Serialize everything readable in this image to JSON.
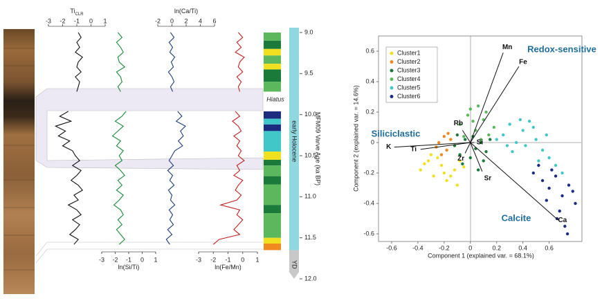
{
  "chart_data": [
    {
      "type": "line",
      "y_label": "MFM09 Varve Age (ka BP)",
      "ylim": [
        9,
        12
      ],
      "y_inverted": true,
      "yticks": [
        {
          "value": 9,
          "label": "9.0"
        },
        {
          "value": 9.5,
          "label": "9.5"
        },
        {
          "value": 10,
          "label": "10.0"
        },
        {
          "value": 10.5,
          "label": "10.5"
        },
        {
          "value": 11,
          "label": "11.0"
        },
        {
          "value": 11.5,
          "label": "11.5"
        },
        {
          "value": 12,
          "label": "12.0"
        }
      ],
      "annotation": "Hiatus",
      "age": [
        9.0,
        9.06,
        9.12,
        9.18,
        9.24,
        9.3,
        9.36,
        9.42,
        9.48,
        9.54,
        9.6,
        9.66,
        9.72,
        9.78,
        9.84,
        9.9,
        9.96,
        10.02,
        10.08,
        10.14,
        10.2,
        10.26,
        10.32,
        10.38,
        10.44,
        10.5,
        10.56,
        10.62,
        10.68,
        10.74,
        10.8,
        10.86,
        10.92,
        10.98,
        11.04,
        11.1,
        11.16,
        11.22,
        11.28,
        11.34,
        11.4,
        11.46,
        11.52,
        11.58
      ],
      "series": [
        {
          "x_label": "Ti",
          "x_label_sub": "CLR",
          "color": "#111111",
          "axis_side": "top",
          "xlim": [
            -3,
            1
          ],
          "xticks": [
            -3,
            -2,
            -1,
            0,
            1
          ],
          "values": [
            -0.9,
            -0.7,
            -1.0,
            -0.8,
            -1.1,
            -0.6,
            -0.9,
            -1.0,
            -0.7,
            -1.1,
            -0.8,
            -0.9,
            -1.0,
            null,
            null,
            null,
            -1.6,
            -2.2,
            -1.4,
            -2.5,
            -1.8,
            -2.3,
            -1.5,
            -2.0,
            -1.3,
            -1.1,
            -0.8,
            -1.3,
            -0.7,
            -1.0,
            -1.4,
            -0.9,
            -0.6,
            -1.2,
            -0.9,
            -1.6,
            -1.0,
            -0.7,
            -1.3,
            -0.8,
            -1.1,
            -1.5,
            -0.9,
            -1.2
          ]
        },
        {
          "x_label": "ln(Si/Ti)",
          "color": "#1a8a3a",
          "axis_side": "bottom",
          "xlim": [
            -3,
            1
          ],
          "xticks": [
            -3,
            -2,
            -1,
            0,
            1
          ],
          "values": [
            -1.8,
            -1.5,
            -1.9,
            -1.6,
            -1.4,
            -1.8,
            -1.7,
            -1.3,
            -1.9,
            -1.6,
            -1.5,
            -1.8,
            -1.6,
            null,
            null,
            null,
            -1.2,
            -1.5,
            -2.0,
            -1.4,
            -1.8,
            -2.2,
            -1.6,
            -1.9,
            -1.4,
            -1.7,
            -1.5,
            -2.0,
            -1.6,
            -1.3,
            -1.8,
            -1.5,
            -1.9,
            -1.4,
            -1.7,
            -2.1,
            -1.6,
            -1.4,
            -1.8,
            -1.5,
            -1.9,
            -1.6,
            -1.3,
            -1.7
          ]
        },
        {
          "x_label": "ln(Ca/Ti)",
          "color": "#1c3a7a",
          "axis_side": "top",
          "xlim": [
            -2,
            6
          ],
          "xticks": [
            -2,
            0,
            2,
            4,
            6
          ],
          "values": [
            -0.2,
            0.3,
            -0.4,
            0.1,
            -0.3,
            0.4,
            -0.1,
            0.2,
            -0.5,
            0.0,
            0.3,
            -0.2,
            0.1,
            null,
            null,
            null,
            0.8,
            1.4,
            0.6,
            1.9,
            1.2,
            1.6,
            0.9,
            1.5,
            0.4,
            0.0,
            -0.4,
            0.2,
            -0.6,
            0.1,
            -0.3,
            0.3,
            -0.5,
            0.0,
            -0.2,
            0.4,
            -0.4,
            0.1,
            -0.3,
            0.2,
            -0.6,
            0.0,
            -0.8,
            -0.3
          ]
        },
        {
          "x_label": "ln(Fe/Mn)",
          "color": "#c02020",
          "axis_side": "bottom",
          "xlim": [
            -3,
            1
          ],
          "xticks": [
            -3,
            -2,
            -1,
            0,
            1
          ],
          "values": [
            -0.3,
            0.0,
            -0.4,
            -0.1,
            -0.5,
            0.1,
            -0.2,
            -0.3,
            0.0,
            -0.4,
            -0.1,
            -0.3,
            -0.2,
            null,
            null,
            null,
            -0.5,
            -0.2,
            -0.7,
            -0.3,
            -0.1,
            -0.6,
            -0.2,
            -0.4,
            -0.1,
            -0.3,
            0.1,
            -0.4,
            -0.2,
            -0.6,
            0.0,
            -0.3,
            -0.5,
            -0.1,
            -0.4,
            -1.5,
            -0.2,
            -0.4,
            0.0,
            -0.3,
            -0.6,
            -0.2,
            -1.6,
            -2.0
          ]
        }
      ],
      "strip": {
        "age_from": [
          9.0,
          9.1,
          9.2,
          9.28,
          9.38,
          9.45,
          9.6,
          9.96,
          10.05,
          10.12,
          10.2,
          10.45,
          10.55,
          10.62,
          10.75,
          10.85,
          11.1,
          11.2,
          11.5,
          11.57
        ],
        "age_to": [
          9.1,
          9.2,
          9.28,
          9.38,
          9.45,
          9.6,
          9.72,
          10.05,
          10.12,
          10.2,
          10.45,
          10.55,
          10.62,
          10.75,
          10.85,
          11.1,
          11.2,
          11.5,
          11.57,
          11.65
        ],
        "cluster": [
          3,
          2,
          0,
          3,
          0,
          2,
          3,
          5,
          4,
          5,
          4,
          0,
          2,
          3,
          2,
          3,
          2,
          3,
          0,
          1
        ]
      },
      "periods": [
        {
          "name": "early Holocene",
          "from": 9,
          "to": 11.65,
          "color": "#8fd8e0"
        },
        {
          "name": "YD",
          "from": 11.65,
          "to": 12,
          "color": "#c8c8c8"
        }
      ]
    },
    {
      "type": "scatter",
      "x_label": "Component 1 (explained var. = 68.1%)",
      "y_label": "Component 2 (explained var. = 14.6%)",
      "xlim": [
        -0.7,
        0.85
      ],
      "ylim": [
        -0.65,
        0.7
      ],
      "xticks": [
        -0.6,
        -0.4,
        -0.2,
        0,
        0.2,
        0.4,
        0.6
      ],
      "yticks": [
        -0.6,
        -0.4,
        -0.2,
        0,
        0.2,
        0.4,
        0.6
      ],
      "legend": "upper left",
      "series": [
        {
          "name": "Cluster1",
          "color": "#f0e020",
          "x": [
            -0.38,
            -0.32,
            -0.28,
            -0.22,
            -0.18,
            -0.12,
            -0.08,
            -0.3,
            -0.25,
            -0.15,
            -0.05,
            -0.2,
            -0.35,
            -0.1
          ],
          "values": [
            -0.18,
            -0.12,
            -0.22,
            -0.15,
            -0.25,
            -0.18,
            -0.12,
            -0.08,
            -0.1,
            -0.22,
            -0.16,
            -0.2,
            -0.14,
            -0.28
          ]
        },
        {
          "name": "Cluster2",
          "color": "#f08a20",
          "x": [
            -0.24,
            -0.2,
            -0.18,
            -0.15,
            -0.22,
            -0.12,
            -0.17,
            -0.26
          ],
          "values": [
            0.0,
            0.04,
            -0.05,
            0.02,
            -0.08,
            -0.02,
            0.06,
            -0.03
          ]
        },
        {
          "name": "Cluster3",
          "color": "#1a7a3a",
          "x": [
            -0.12,
            -0.08,
            -0.04,
            0.0,
            0.04,
            0.08,
            0.12,
            -0.06,
            0.02,
            0.1,
            -0.1,
            0.06,
            0.15
          ],
          "values": [
            -0.02,
            -0.08,
            0.02,
            -0.1,
            -0.04,
            0.0,
            -0.06,
            -0.14,
            0.04,
            -0.12,
            0.05,
            -0.18,
            0.02
          ]
        },
        {
          "name": "Cluster4",
          "color": "#5cb85c",
          "x": [
            -0.08,
            -0.02,
            0.04,
            0.1,
            0.14,
            0.0,
            0.06,
            -0.05,
            0.12,
            0.18,
            0.08,
            0.02
          ],
          "values": [
            0.12,
            0.18,
            0.08,
            0.15,
            0.05,
            0.22,
            0.24,
            0.04,
            0.2,
            0.1,
            0.02,
            0.14
          ]
        },
        {
          "name": "Cluster5",
          "color": "#40c8c8",
          "x": [
            0.25,
            0.3,
            0.35,
            0.4,
            0.45,
            0.5,
            0.55,
            0.6,
            0.32,
            0.42,
            0.48,
            0.58,
            0.65,
            0.38,
            0.28,
            0.52,
            0.7,
            0.2
          ],
          "values": [
            0.05,
            0.12,
            0.0,
            0.08,
            0.14,
            0.02,
            -0.05,
            -0.1,
            -0.06,
            -0.02,
            0.1,
            0.05,
            -0.15,
            0.15,
            -0.02,
            -0.12,
            -0.2,
            0.02
          ]
        },
        {
          "name": "Cluster6",
          "color": "#1c2c80",
          "x": [
            0.48,
            0.55,
            0.6,
            0.65,
            0.7,
            0.75,
            0.8,
            0.58,
            0.68,
            0.72,
            0.62,
            0.78,
            0.52,
            0.66,
            0.74
          ],
          "values": [
            -0.2,
            -0.25,
            -0.3,
            -0.22,
            -0.35,
            -0.28,
            -0.4,
            -0.38,
            -0.45,
            -0.55,
            -0.18,
            -0.32,
            -0.15,
            -0.5,
            -0.6
          ]
        }
      ],
      "loadings": {
        "names": [
          "Mn",
          "Fe",
          "Rb",
          "K",
          "Ti",
          "Si",
          "Zr",
          "Sr",
          "Ca"
        ],
        "x": [
          0.25,
          0.37,
          -0.06,
          -0.58,
          -0.38,
          0.03,
          -0.04,
          0.09,
          0.67
        ],
        "y": [
          0.59,
          0.5,
          0.08,
          -0.03,
          -0.045,
          0.0,
          -0.07,
          -0.19,
          -0.51
        ]
      },
      "annotations": [
        "Redox-sensitive",
        "Siliciclastic",
        "Calcite"
      ]
    }
  ]
}
